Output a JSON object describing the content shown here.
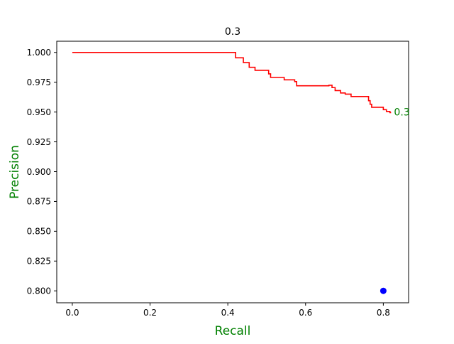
{
  "chart_data": {
    "type": "line",
    "title": "0.3",
    "xlabel": "Recall",
    "ylabel": "Precision",
    "xlim": [
      -0.04,
      0.865
    ],
    "ylim": [
      0.79,
      1.0094
    ],
    "xticks": [
      "0.0",
      "0.2",
      "0.4",
      "0.6",
      "0.8"
    ],
    "xtick_values": [
      0.0,
      0.2,
      0.4,
      0.6,
      0.8
    ],
    "yticks": [
      "0.800",
      "0.825",
      "0.850",
      "0.875",
      "0.900",
      "0.925",
      "0.950",
      "0.975",
      "1.000"
    ],
    "ytick_values": [
      0.8,
      0.825,
      0.85,
      0.875,
      0.9,
      0.925,
      0.95,
      0.975,
      1.0
    ],
    "grid": false,
    "series": [
      {
        "color": "#ff0000",
        "x": [
          0.0,
          0.42,
          0.42,
          0.44,
          0.44,
          0.455,
          0.455,
          0.47,
          0.47,
          0.505,
          0.505,
          0.51,
          0.51,
          0.545,
          0.545,
          0.572,
          0.572,
          0.577,
          0.577,
          0.66,
          0.66,
          0.668,
          0.668,
          0.676,
          0.676,
          0.69,
          0.69,
          0.702,
          0.702,
          0.717,
          0.717,
          0.762,
          0.762,
          0.766,
          0.766,
          0.77,
          0.77,
          0.8,
          0.8,
          0.808,
          0.808,
          0.817,
          0.817,
          0.82
        ],
        "y": [
          1.0,
          1.0,
          0.9955,
          0.9955,
          0.9915,
          0.9915,
          0.9875,
          0.9875,
          0.985,
          0.985,
          0.982,
          0.982,
          0.979,
          0.979,
          0.977,
          0.977,
          0.9755,
          0.9755,
          0.972,
          0.972,
          0.9725,
          0.9725,
          0.9705,
          0.9705,
          0.968,
          0.968,
          0.966,
          0.966,
          0.965,
          0.965,
          0.963,
          0.963,
          0.9595,
          0.9595,
          0.9565,
          0.9565,
          0.954,
          0.954,
          0.952,
          0.952,
          0.9505,
          0.9505,
          0.9495,
          0.9495
        ]
      }
    ],
    "marker": {
      "x": 0.8,
      "y": 0.8,
      "color": "#0000ff"
    },
    "annotation": {
      "text": "0.3",
      "x": 0.822,
      "y": 0.95,
      "color": "#008000"
    },
    "label_color": "#008000",
    "text_color": "#000000",
    "axes_color": "#000000"
  }
}
